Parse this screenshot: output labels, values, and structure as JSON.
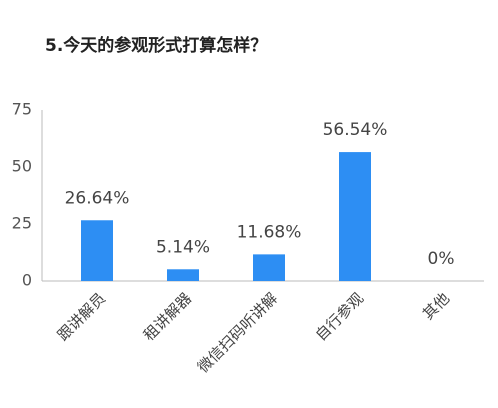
{
  "chart_data": {
    "type": "bar",
    "title": "5.今天的参观形式打算怎样？",
    "categories": [
      "跟讲解员",
      "租讲解器",
      "微信扫码听讲解",
      "自行参观",
      "其他"
    ],
    "values": [
      26.64,
      5.14,
      11.68,
      56.54,
      0
    ],
    "value_labels": [
      "26.64%",
      "5.14%",
      "11.68%",
      "56.54%",
      "0%"
    ],
    "color": "#2d8ef3",
    "ylim": [
      0,
      75
    ],
    "yticks": [
      0,
      25,
      50,
      75
    ],
    "grid": false
  }
}
